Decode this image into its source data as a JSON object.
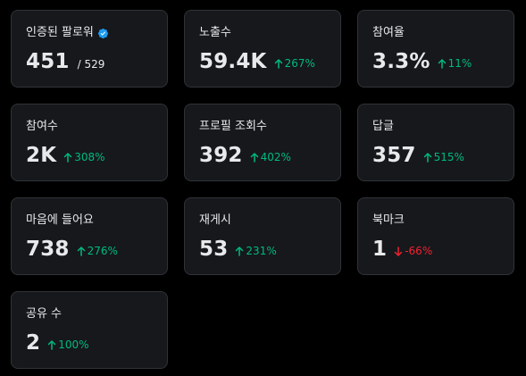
{
  "colors": {
    "background": "#000000",
    "card": "#16181c",
    "border": "#2f3336",
    "text": "#e7e9ea",
    "up": "#00ba7c",
    "down": "#f4212e",
    "verified": "#1d9bf0"
  },
  "cards": [
    {
      "label": "인증된 팔로워",
      "value": "451",
      "suffix": "/ 529",
      "verified_icon": "verified-badge-icon"
    },
    {
      "label": "노출수",
      "value": "59.4K",
      "change": "267%",
      "direction": "up",
      "arrow_icon": "arrow-up-icon"
    },
    {
      "label": "참여율",
      "value": "3.3%",
      "change": "11%",
      "direction": "up",
      "arrow_icon": "arrow-up-icon"
    },
    {
      "label": "참여수",
      "value": "2K",
      "change": "308%",
      "direction": "up",
      "arrow_icon": "arrow-up-icon"
    },
    {
      "label": "프로필 조회수",
      "value": "392",
      "change": "402%",
      "direction": "up",
      "arrow_icon": "arrow-up-icon"
    },
    {
      "label": "답글",
      "value": "357",
      "change": "515%",
      "direction": "up",
      "arrow_icon": "arrow-up-icon"
    },
    {
      "label": "마음에 들어요",
      "value": "738",
      "change": "276%",
      "direction": "up",
      "arrow_icon": "arrow-up-icon"
    },
    {
      "label": "재게시",
      "value": "53",
      "change": "231%",
      "direction": "up",
      "arrow_icon": "arrow-up-icon"
    },
    {
      "label": "북마크",
      "value": "1",
      "change": "-66%",
      "direction": "down",
      "arrow_icon": "arrow-down-icon"
    },
    {
      "label": "공유 수",
      "value": "2",
      "change": "100%",
      "direction": "up",
      "arrow_icon": "arrow-up-icon"
    }
  ]
}
